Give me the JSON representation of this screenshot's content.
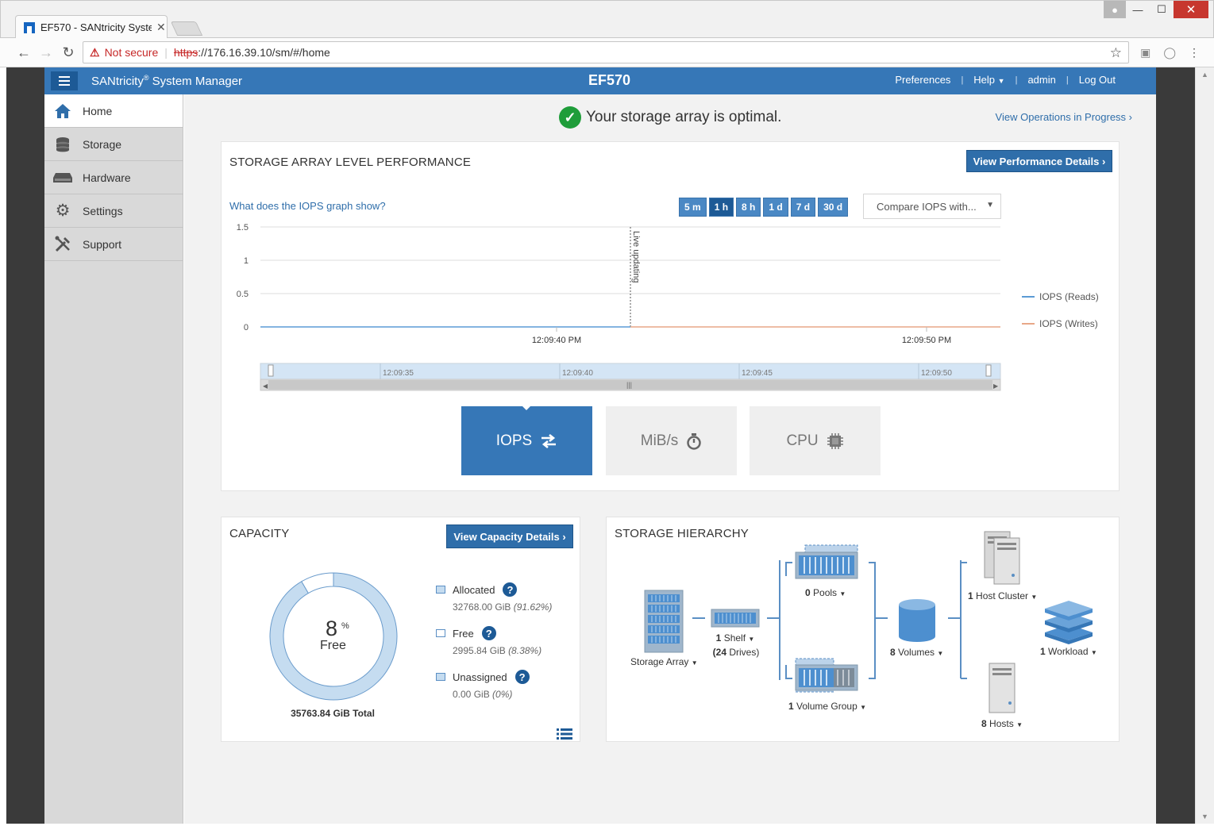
{
  "browser": {
    "tab_title": "EF570 - SANtricity System Manager",
    "security_label": "Not secure",
    "url_scheme": "https",
    "url_rest": "://176.16.39.10/sm/#/home"
  },
  "header": {
    "app_name": "SANtricity",
    "app_name_suffix": " System Manager",
    "registered": "®",
    "array_name": "EF570",
    "links": [
      "Preferences",
      "Help",
      "admin",
      "Log Out"
    ]
  },
  "sidebar": {
    "items": [
      {
        "label": "Home",
        "icon": "home-icon",
        "active": true
      },
      {
        "label": "Storage",
        "icon": "database-icon",
        "active": false
      },
      {
        "label": "Hardware",
        "icon": "server-icon",
        "active": false
      },
      {
        "label": "Settings",
        "icon": "gear-icon",
        "active": false
      },
      {
        "label": "Support",
        "icon": "tools-icon",
        "active": false
      }
    ]
  },
  "status": {
    "message": "Your storage array is optimal.",
    "view_ops": "View Operations in Progress ›"
  },
  "performance": {
    "title": "STORAGE ARRAY LEVEL PERFORMANCE",
    "details_button": "View Performance Details ›",
    "question_link": "What does the IOPS graph show?",
    "ranges": [
      "5 m",
      "1 h",
      "8 h",
      "1 d",
      "7 d",
      "30 d"
    ],
    "selected_range": "1 h",
    "compare_placeholder": "Compare IOPS with...",
    "metric_tabs": [
      {
        "label": "IOPS",
        "icon": "swap-arrows-icon",
        "active": true
      },
      {
        "label": "MiB/s",
        "icon": "stopwatch-icon",
        "active": false
      },
      {
        "label": "CPU",
        "icon": "chip-icon",
        "active": false
      }
    ]
  },
  "chart_data": {
    "type": "line",
    "ylim": [
      0,
      1.5
    ],
    "yticks": [
      "1.5",
      "1",
      "0.5",
      "0"
    ],
    "xticks": [
      "12:09:40 PM",
      "12:09:50 PM"
    ],
    "annotation": "Live updating",
    "navigator_ticks": [
      "12:09:35",
      "12:09:40",
      "12:09:45",
      "12:09:50"
    ],
    "series": [
      {
        "name": "IOPS (Reads)",
        "color": "#5b9bd5",
        "values": [
          0,
          0
        ]
      },
      {
        "name": "IOPS (Writes)",
        "color": "#e8a788",
        "values": [
          0,
          0
        ]
      }
    ]
  },
  "capacity": {
    "title": "CAPACITY",
    "details_button": "View Capacity Details ›",
    "free_percent": "8",
    "percent_sign": "%",
    "free_label": "Free",
    "total": "35763.84 GiB Total",
    "allocated_fraction": 0.9162,
    "legend": [
      {
        "label": "Allocated",
        "value": "32768.00 GiB",
        "pct": "(91.62%)",
        "color": "#c5dcf0"
      },
      {
        "label": "Free",
        "value": "2995.84 GiB",
        "pct": "(8.38%)",
        "color": "#ffffff"
      },
      {
        "label": "Unassigned",
        "value": "0.00 GiB",
        "pct": "(0%)",
        "color": "#c5dcf0"
      }
    ]
  },
  "hierarchy": {
    "title": "STORAGE HIERARCHY",
    "storage_array": "Storage Array",
    "shelf_count": "1",
    "shelf_label": "Shelf",
    "drives_count": "(24",
    "drives_label": "Drives)",
    "pools_count": "0",
    "pools_label": "Pools",
    "vg_count": "1",
    "vg_label": "Volume Group",
    "volumes_count": "8",
    "volumes_label": "Volumes",
    "host_cluster_count": "1",
    "host_cluster_label": "Host Cluster",
    "workload_count": "1",
    "workload_label": "Workload",
    "hosts_count": "8",
    "hosts_label": "Hosts"
  }
}
